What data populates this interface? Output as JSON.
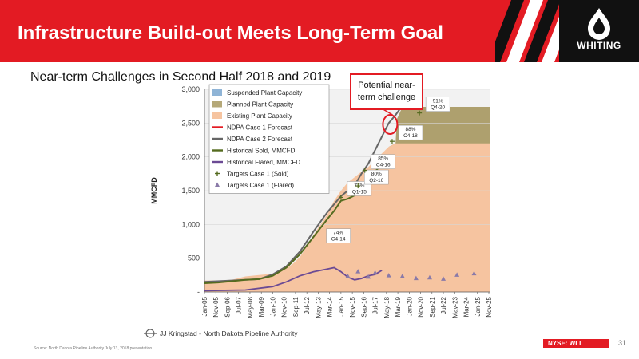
{
  "header": {
    "title": "Infrastructure Build-out Meets Long-Term Goal",
    "logo_text": "WHITING",
    "brand_color": "#e31b23"
  },
  "subtitle": "Near-term Challenges in Second Half 2018 and 2019",
  "callout": {
    "line1": "Potential near-",
    "line2": "term challenge"
  },
  "footer": {
    "source": "Source: North Dakota Pipeline Authority July 13, 2018 presentation.",
    "ticker": "NYSE: WLL",
    "page": "31"
  },
  "chart_data": {
    "type": "area",
    "ylabel": "MMCFD",
    "ylim": [
      0,
      3000
    ],
    "yticks": [
      "-",
      "500",
      "1,000",
      "1,500",
      "2,000",
      "2,500",
      "3,000"
    ],
    "ytick_values": [
      0,
      500,
      1000,
      1500,
      2000,
      2500,
      3000
    ],
    "xticks": [
      "Jan-05",
      "Nov-05",
      "Sep-06",
      "Jul-07",
      "May-08",
      "Mar-09",
      "Jan-10",
      "Nov-10",
      "Sep-11",
      "Jul-12",
      "May-13",
      "Mar-14",
      "Jan-15",
      "Nov-15",
      "Sep-16",
      "Jul-17",
      "May-18",
      "Mar-19",
      "Jan-20",
      "Nov-20",
      "Sep-21",
      "Jul-22",
      "May-23",
      "Mar-24",
      "Jan-25",
      "Nov-25"
    ],
    "x_range": [
      "Jan-05",
      "Dec-25"
    ],
    "legend_position": "top-left",
    "credit": "JJ Kringstad - North Dakota Pipeline Authority",
    "legend": [
      {
        "label": "Suspended Plant Capacity",
        "kind": "swatch",
        "color": "#8fb4d6"
      },
      {
        "label": "Planned Plant Capacity",
        "kind": "swatch",
        "color": "#b5a878"
      },
      {
        "label": "Existing Plant Capacity",
        "kind": "swatch",
        "color": "#f6c4a0"
      },
      {
        "label": "NDPA Case 1 Forecast",
        "kind": "line",
        "color": "#e31b23"
      },
      {
        "label": "NDPA Case 2 Forecast",
        "kind": "line",
        "color": "#666666"
      },
      {
        "label": "Historical Sold, MMCFD",
        "kind": "line",
        "color": "#556b1f"
      },
      {
        "label": "Historical Flared, MMCFD",
        "kind": "line",
        "color": "#6b4a94"
      },
      {
        "label": "Targets Case 1 (Sold)",
        "kind": "plus",
        "color": "#556b1f"
      },
      {
        "label": "Targets Case 1 (Flared)",
        "kind": "triangle",
        "color": "#6b4a94"
      }
    ],
    "series": [
      {
        "name": "Existing Plant Capacity",
        "points": [
          [
            2005.0,
            170
          ],
          [
            2006.0,
            170
          ],
          [
            2007.0,
            180
          ],
          [
            2008.0,
            230
          ],
          [
            2009.0,
            250
          ],
          [
            2010.0,
            270
          ],
          [
            2011.0,
            350
          ],
          [
            2011.5,
            420
          ],
          [
            2012.0,
            520
          ],
          [
            2012.5,
            680
          ],
          [
            2013.0,
            850
          ],
          [
            2013.5,
            1000
          ],
          [
            2014.0,
            1150
          ],
          [
            2014.5,
            1350
          ],
          [
            2015.0,
            1500
          ],
          [
            2015.5,
            1620
          ],
          [
            2016.0,
            1700
          ],
          [
            2016.5,
            1780
          ],
          [
            2017.0,
            1850
          ],
          [
            2017.5,
            1950
          ],
          [
            2018.0,
            2050
          ],
          [
            2018.5,
            2150
          ],
          [
            2019.0,
            2200
          ],
          [
            2025.9,
            2200
          ]
        ]
      },
      {
        "name": "Planned Plant Capacity",
        "points": [
          [
            2018.5,
            2150
          ],
          [
            2019.0,
            2200
          ],
          [
            2019.1,
            2560
          ],
          [
            2019.5,
            2740
          ],
          [
            2025.9,
            2740
          ]
        ]
      },
      {
        "name": "NDPA Case 2 Forecast",
        "points": [
          [
            2005.0,
            150
          ],
          [
            2007.0,
            170
          ],
          [
            2009.0,
            190
          ],
          [
            2010.0,
            260
          ],
          [
            2011.0,
            380
          ],
          [
            2012.0,
            600
          ],
          [
            2013.0,
            900
          ],
          [
            2014.0,
            1180
          ],
          [
            2015.0,
            1420
          ],
          [
            2015.5,
            1500
          ],
          [
            2016.0,
            1580
          ],
          [
            2016.5,
            1750
          ],
          [
            2017.0,
            1900
          ],
          [
            2017.5,
            2100
          ],
          [
            2018.0,
            2300
          ],
          [
            2018.5,
            2500
          ],
          [
            2019.0,
            2620
          ],
          [
            2019.5,
            2760
          ],
          [
            2020.0,
            2880
          ],
          [
            2020.5,
            3000
          ]
        ]
      },
      {
        "name": "Historical Sold, MMCFD",
        "points": [
          [
            2005.0,
            130
          ],
          [
            2006.0,
            140
          ],
          [
            2007.0,
            160
          ],
          [
            2008.0,
            180
          ],
          [
            2009.0,
            190
          ],
          [
            2010.0,
            240
          ],
          [
            2011.0,
            360
          ],
          [
            2012.0,
            560
          ],
          [
            2013.0,
            820
          ],
          [
            2014.0,
            1080
          ],
          [
            2014.5,
            1200
          ],
          [
            2015.0,
            1350
          ],
          [
            2015.5,
            1380
          ],
          [
            2016.0,
            1430
          ],
          [
            2016.5,
            1550
          ],
          [
            2017.0,
            1650
          ],
          [
            2017.5,
            1780
          ],
          [
            2018.0,
            1900
          ]
        ]
      },
      {
        "name": "Historical Flared, MMCFD",
        "points": [
          [
            2005.0,
            20
          ],
          [
            2008.0,
            30
          ],
          [
            2010.0,
            80
          ],
          [
            2011.0,
            150
          ],
          [
            2012.0,
            240
          ],
          [
            2013.0,
            300
          ],
          [
            2014.0,
            340
          ],
          [
            2014.5,
            360
          ],
          [
            2015.0,
            300
          ],
          [
            2015.5,
            220
          ],
          [
            2016.0,
            180
          ],
          [
            2016.5,
            200
          ],
          [
            2017.0,
            240
          ],
          [
            2017.5,
            260
          ],
          [
            2018.0,
            320
          ]
        ]
      }
    ],
    "targets_sold": [
      {
        "x": 2015.0,
        "y": 1400,
        "label": "77%\nQ1-15"
      },
      {
        "x": 2016.25,
        "y": 1570,
        "label": "80%\nQ2-16"
      },
      {
        "x": 2016.75,
        "y": 1800,
        "label": "85%\nC4-16"
      },
      {
        "x": 2018.75,
        "y": 2230,
        "label": "88%\nC4-18"
      },
      {
        "x": 2020.75,
        "y": 2650,
        "label": "91%\nQ4-20"
      }
    ],
    "targets_flared_label": {
      "x": 2014.75,
      "y": 830,
      "label": "74%\nC4-14"
    },
    "targets_flared": [
      [
        2015.5,
        230
      ],
      [
        2016.25,
        300
      ],
      [
        2017.0,
        220
      ],
      [
        2017.5,
        280
      ],
      [
        2018.5,
        240
      ],
      [
        2019.5,
        230
      ],
      [
        2020.5,
        200
      ],
      [
        2021.5,
        210
      ],
      [
        2022.5,
        190
      ],
      [
        2023.5,
        250
      ],
      [
        2024.75,
        270
      ]
    ]
  }
}
